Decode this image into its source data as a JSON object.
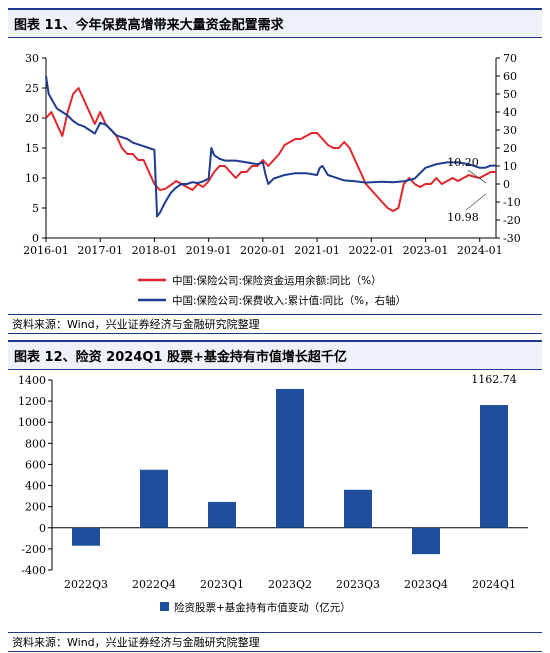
{
  "fig11": {
    "title": "图表 11、今年保费高增带来大量资金配置需求",
    "source": "资料来源：Wind，兴业证券经济与金融研究院整理",
    "annotation_right_top": "10.20",
    "annotation_right_bottom": "10.98"
  },
  "fig12": {
    "title": "图表 12、险资 2024Q1 股票+基金持有市值增长超千亿",
    "source": "资料来源：Wind，兴业证券经济与金融研究院整理",
    "value_label": "1162.74"
  },
  "colors": {
    "red": "#e0262a",
    "blue": "#1f3b8e",
    "bar": "#1f4e9c"
  },
  "chart_data": [
    {
      "type": "line",
      "x_ticks": [
        "2016-01",
        "2017-01",
        "2018-01",
        "2019-01",
        "2020-01",
        "2021-01",
        "2022-01",
        "2023-01",
        "2024-01"
      ],
      "ylim_left": [
        0,
        30
      ],
      "yticks_left": [
        "0",
        "5",
        "10",
        "15",
        "20",
        "25",
        "30"
      ],
      "ylim_right": [
        -30,
        70
      ],
      "yticks_right": [
        "-30",
        "-20",
        "-10",
        "0",
        "10",
        "20",
        "30",
        "40",
        "50",
        "60",
        "70"
      ],
      "legend": "bottom",
      "series": [
        {
          "name": "中国:保险公司:保险资金运用余额:同比（%）",
          "axis": "left",
          "x": [
            2016.0,
            2016.1,
            2016.2,
            2016.3,
            2016.4,
            2016.5,
            2016.6,
            2016.7,
            2016.8,
            2016.9,
            2017.0,
            2017.1,
            2017.2,
            2017.3,
            2017.4,
            2017.5,
            2017.6,
            2017.7,
            2017.8,
            2017.9,
            2018.0,
            2018.1,
            2018.2,
            2018.3,
            2018.4,
            2018.5,
            2018.6,
            2018.7,
            2018.8,
            2018.9,
            2019.0,
            2019.1,
            2019.2,
            2019.3,
            2019.4,
            2019.5,
            2019.6,
            2019.7,
            2019.8,
            2019.9,
            2020.0,
            2020.1,
            2020.2,
            2020.3,
            2020.4,
            2020.5,
            2020.6,
            2020.7,
            2020.8,
            2020.9,
            2021.0,
            2021.1,
            2021.2,
            2021.3,
            2021.4,
            2021.5,
            2021.6,
            2021.7,
            2021.8,
            2021.9,
            2022.0,
            2022.1,
            2022.2,
            2022.3,
            2022.4,
            2022.5,
            2022.6,
            2022.7,
            2022.8,
            2022.9,
            2023.0,
            2023.1,
            2023.2,
            2023.3,
            2023.4,
            2023.5,
            2023.6,
            2023.7,
            2023.8,
            2023.9,
            2024.0,
            2024.1,
            2024.2,
            2024.3
          ],
          "values": [
            20,
            21,
            19,
            17,
            21,
            24,
            25,
            23,
            21,
            19,
            21,
            19,
            18,
            17,
            15,
            14,
            14,
            13,
            13,
            11,
            9,
            8,
            8.2,
            8.8,
            9.5,
            9,
            8.5,
            8,
            9,
            8.5,
            9.5,
            11,
            12,
            12,
            11,
            10,
            11,
            11,
            12,
            12,
            13,
            12,
            13,
            14,
            15.5,
            16,
            16.5,
            16.5,
            17,
            17.5,
            17.5,
            16.5,
            15.5,
            15,
            15,
            16,
            15,
            13,
            11,
            9,
            8,
            7,
            6,
            5,
            4.5,
            5,
            9,
            10,
            9,
            8.5,
            9,
            9,
            10,
            9,
            9.5,
            10,
            9.5,
            10,
            10.5,
            10.2,
            10,
            10.5,
            11,
            11
          ]
        },
        {
          "name": "中国:保险公司:保费收入:累计值:同比（%，右轴）",
          "axis": "right",
          "x": [
            2016.0,
            2016.05,
            2016.2,
            2016.3,
            2016.4,
            2016.5,
            2016.6,
            2016.7,
            2016.8,
            2016.9,
            2017.0,
            2017.1,
            2017.2,
            2017.3,
            2017.4,
            2017.5,
            2017.6,
            2017.7,
            2017.8,
            2017.9,
            2018.0,
            2018.05,
            2018.1,
            2018.2,
            2018.3,
            2018.4,
            2018.5,
            2018.6,
            2018.7,
            2018.8,
            2018.9,
            2019.0,
            2019.05,
            2019.1,
            2019.2,
            2019.3,
            2019.5,
            2019.7,
            2019.9,
            2020.0,
            2020.05,
            2020.1,
            2020.2,
            2020.4,
            2020.6,
            2020.8,
            2021.0,
            2021.05,
            2021.1,
            2021.2,
            2021.3,
            2021.5,
            2021.7,
            2021.9,
            2022.0,
            2022.2,
            2022.4,
            2022.6,
            2022.8,
            2023.0,
            2023.1,
            2023.2,
            2023.4,
            2023.6,
            2023.8,
            2024.0,
            2024.1,
            2024.2,
            2024.3
          ],
          "values": [
            60,
            50,
            42,
            40,
            38,
            35,
            33,
            32,
            30,
            28,
            34,
            33,
            30,
            27,
            26,
            25,
            23,
            22,
            21,
            20,
            19,
            -18,
            -16,
            -10,
            -5,
            -2,
            0,
            0,
            1,
            0.5,
            1.5,
            3,
            20,
            16,
            14,
            13,
            13,
            12,
            11,
            12,
            5,
            0,
            3,
            5,
            6,
            6,
            5,
            9,
            10,
            5,
            4,
            2,
            1.5,
            0.8,
            1,
            1.2,
            1,
            1.5,
            3,
            9,
            10,
            11,
            12,
            12,
            11,
            9,
            9,
            10.2,
            10.2
          ]
        }
      ]
    },
    {
      "type": "bar",
      "categories": [
        "2022Q3",
        "2022Q4",
        "2023Q1",
        "2023Q2",
        "2023Q3",
        "2023Q4",
        "2024Q1"
      ],
      "values": [
        -170,
        550,
        245,
        1315,
        360,
        -250,
        1162.74
      ],
      "ylim": [
        -400,
        1400
      ],
      "yticks": [
        "-400",
        "-200",
        "0",
        "200",
        "400",
        "600",
        "800",
        "1000",
        "1200",
        "1400"
      ],
      "legend": "bottom",
      "series": [
        {
          "name": "险资股票+基金持有市值变动（亿元）"
        }
      ]
    }
  ]
}
